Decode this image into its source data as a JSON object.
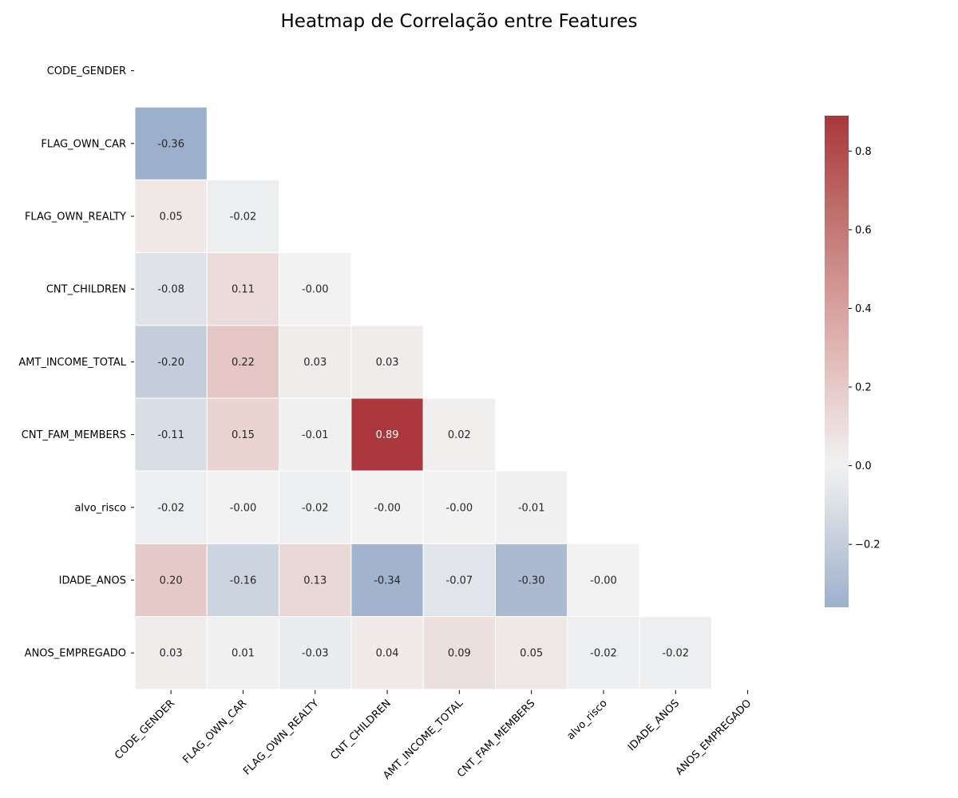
{
  "chart_data": {
    "type": "heatmap",
    "title": "Heatmap de Correlação entre Features",
    "xlabel": "",
    "ylabel": "",
    "mask": "upper-triangle-including-diagonal",
    "labels": [
      "CODE_GENDER",
      "FLAG_OWN_CAR",
      "FLAG_OWN_REALTY",
      "CNT_CHILDREN",
      "AMT_INCOME_TOTAL",
      "CNT_FAM_MEMBERS",
      "alvo_risco",
      "IDADE_ANOS",
      "ANOS_EMPREGADO"
    ],
    "matrix": [
      [
        null,
        null,
        null,
        null,
        null,
        null,
        null,
        null,
        null
      ],
      [
        -0.36,
        null,
        null,
        null,
        null,
        null,
        null,
        null,
        null
      ],
      [
        0.05,
        -0.02,
        null,
        null,
        null,
        null,
        null,
        null,
        null
      ],
      [
        -0.08,
        0.11,
        -0.0,
        null,
        null,
        null,
        null,
        null,
        null
      ],
      [
        -0.2,
        0.22,
        0.03,
        0.03,
        null,
        null,
        null,
        null,
        null
      ],
      [
        -0.11,
        0.15,
        -0.01,
        0.89,
        0.02,
        null,
        null,
        null,
        null
      ],
      [
        -0.02,
        -0.0,
        -0.02,
        -0.0,
        -0.0,
        -0.01,
        null,
        null,
        null
      ],
      [
        0.2,
        -0.16,
        0.13,
        -0.34,
        -0.07,
        -0.3,
        -0.0,
        null,
        null
      ],
      [
        0.03,
        0.01,
        -0.03,
        0.04,
        0.09,
        0.05,
        -0.02,
        -0.02,
        null
      ]
    ],
    "annotation_format": "0.00",
    "colorbar": {
      "colormap": "vlag",
      "vmin": -0.36,
      "vmax": 0.89,
      "center": 0.0,
      "ticks": [
        -0.2,
        0.0,
        0.2,
        0.4,
        0.6,
        0.8
      ],
      "tick_labels": [
        "−0.2",
        "0.0",
        "0.2",
        "0.4",
        "0.6",
        "0.8"
      ]
    },
    "grid": false
  },
  "colors": {
    "negative_end": "#2369bd",
    "center": "#f2f2f2",
    "positive_end": "#a9373b",
    "cell_border": "#ffffff",
    "text_dark": "#262626",
    "text_light": "#ffffff"
  }
}
